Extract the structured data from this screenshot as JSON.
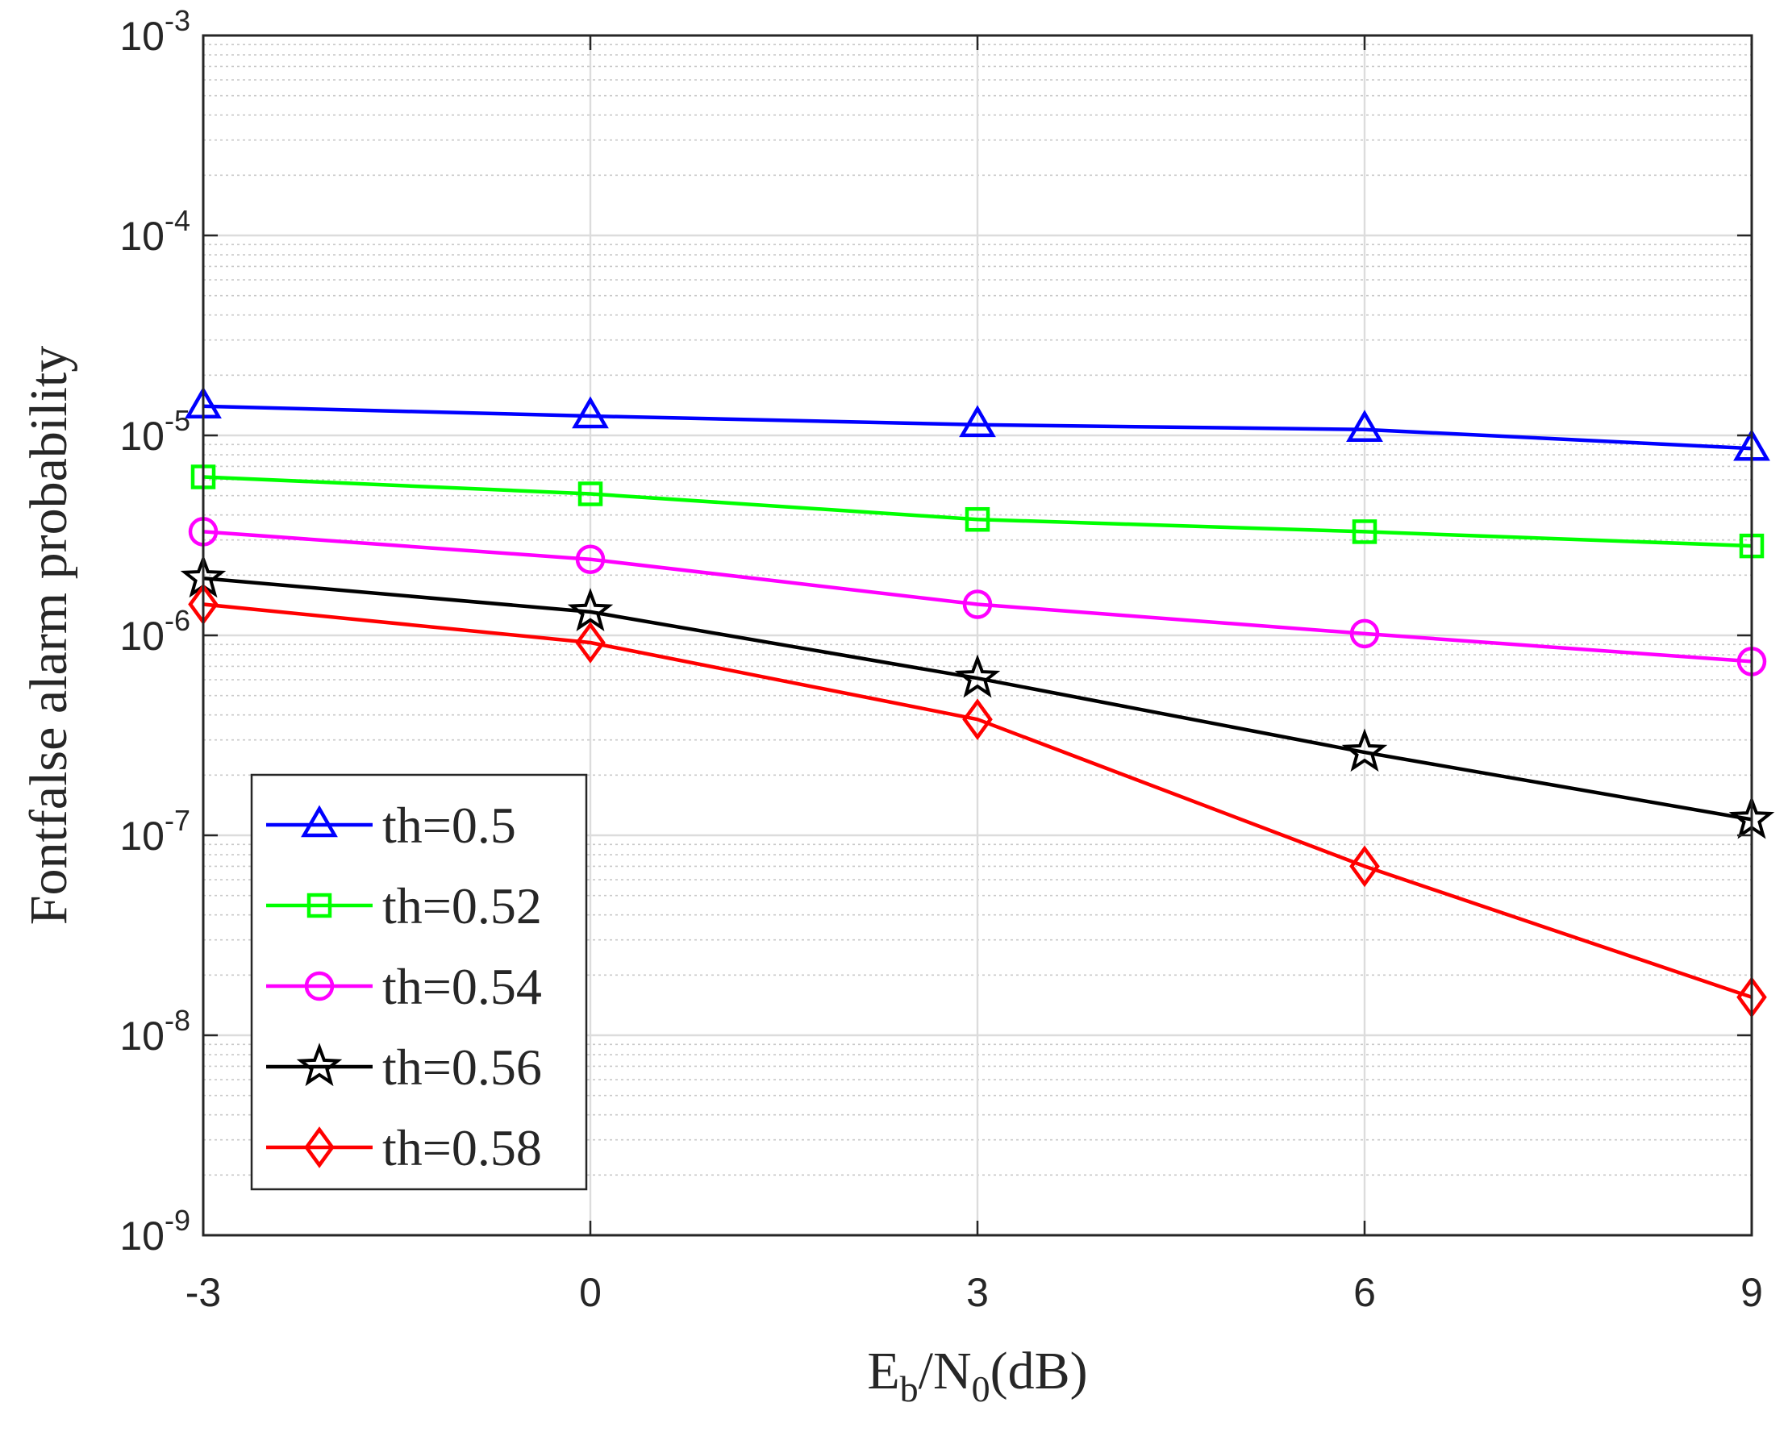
{
  "chart_data": {
    "type": "line",
    "title": "",
    "xlabel": {
      "main": "E",
      "sub1": "b",
      "mid": "/N",
      "sub2": "0",
      "tail": "(dB)"
    },
    "ylabel": "Fontfalse alarm probability",
    "x": [
      -3,
      0,
      3,
      6,
      9
    ],
    "xlim": [
      -3,
      9
    ],
    "ylim": [
      1e-09,
      0.001
    ],
    "yscale": "log",
    "x_ticks": [
      {
        "value": -3,
        "label": "-3"
      },
      {
        "value": 0,
        "label": "0"
      },
      {
        "value": 3,
        "label": "3"
      },
      {
        "value": 6,
        "label": "6"
      },
      {
        "value": 9,
        "label": "9"
      }
    ],
    "y_ticks": [
      {
        "exp": -9,
        "base": "10",
        "sup": "-9"
      },
      {
        "exp": -8,
        "base": "10",
        "sup": "-8"
      },
      {
        "exp": -7,
        "base": "10",
        "sup": "-7"
      },
      {
        "exp": -6,
        "base": "10",
        "sup": "-6"
      },
      {
        "exp": -5,
        "base": "10",
        "sup": "-5"
      },
      {
        "exp": -4,
        "base": "10",
        "sup": "-4"
      },
      {
        "exp": -3,
        "base": "10",
        "sup": "-3"
      }
    ],
    "grid": true,
    "minor_grid": true,
    "legend_position": "bottom-left",
    "series": [
      {
        "name": "th=0.5",
        "color": "#0000ff",
        "marker": "triangle",
        "values": [
          1.4e-05,
          1.25e-05,
          1.13e-05,
          1.07e-05,
          8.6e-06
        ]
      },
      {
        "name": "th=0.52",
        "color": "#00ff00",
        "marker": "square",
        "values": [
          6.2e-06,
          5.1e-06,
          3.8e-06,
          3.3e-06,
          2.8e-06
        ]
      },
      {
        "name": "th=0.54",
        "color": "#ff00ff",
        "marker": "circle",
        "values": [
          3.3e-06,
          2.4e-06,
          1.43e-06,
          1.02e-06,
          7.4e-07
        ]
      },
      {
        "name": "th=0.56",
        "color": "#000000",
        "marker": "star",
        "values": [
          1.93e-06,
          1.31e-06,
          6.1e-07,
          2.6e-07,
          1.2e-07
        ]
      },
      {
        "name": "th=0.58",
        "color": "#ff0000",
        "marker": "diamond",
        "values": [
          1.43e-06,
          9.2e-07,
          3.8e-07,
          7e-08,
          1.55e-08
        ]
      }
    ]
  }
}
